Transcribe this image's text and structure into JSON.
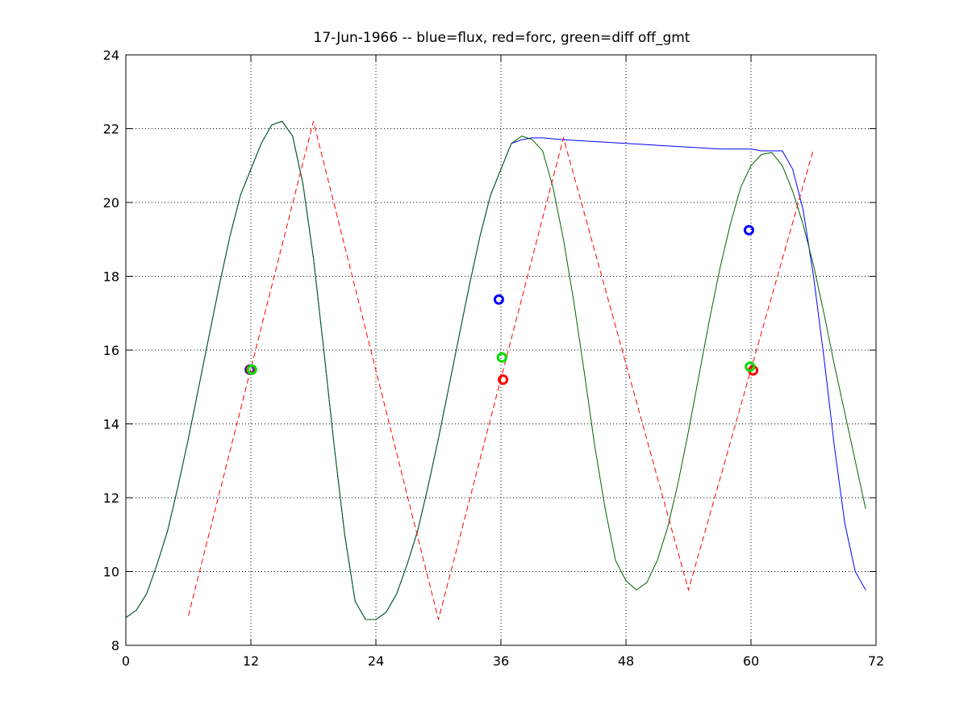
{
  "chart_data": {
    "type": "line",
    "title": "17-Jun-1966 -- blue=flux, red=forc, green=diff off_gmt",
    "xlabel": "",
    "ylabel": "",
    "xlim": [
      0,
      72
    ],
    "ylim": [
      8,
      24
    ],
    "xticks": [
      0,
      12,
      24,
      36,
      48,
      60,
      72
    ],
    "yticks": [
      8,
      10,
      12,
      14,
      16,
      18,
      20,
      22,
      24
    ],
    "grid": true,
    "legend": "none",
    "series": [
      {
        "color": "#0000ff",
        "style": "solid",
        "x": [
          0,
          1,
          2,
          3,
          4,
          5,
          6,
          7,
          8,
          9,
          10,
          11,
          12,
          13,
          14,
          15,
          16,
          17,
          18,
          19,
          20,
          21,
          22,
          23,
          24,
          25,
          26,
          27,
          28,
          29,
          30,
          31,
          32,
          33,
          34,
          35,
          36,
          37,
          38,
          39,
          40,
          42,
          45,
          48,
          51,
          54,
          57,
          60,
          61,
          62,
          63,
          64,
          65,
          66,
          67,
          68,
          69,
          70,
          71
        ],
        "y": [
          8.75,
          8.95,
          9.4,
          10.2,
          11.1,
          12.3,
          13.6,
          15.0,
          16.4,
          17.8,
          19.1,
          20.2,
          20.9,
          21.6,
          22.1,
          22.2,
          21.8,
          20.5,
          18.5,
          16.0,
          13.4,
          11.0,
          9.2,
          8.7,
          8.7,
          8.9,
          9.4,
          10.2,
          11.1,
          12.3,
          13.6,
          15.0,
          16.4,
          17.8,
          19.1,
          20.2,
          20.9,
          21.6,
          21.7,
          21.75,
          21.75,
          21.7,
          21.65,
          21.6,
          21.55,
          21.5,
          21.45,
          21.45,
          21.4,
          21.4,
          21.4,
          20.9,
          19.8,
          18.0,
          15.8,
          13.4,
          11.3,
          10.0,
          9.5
        ]
      },
      {
        "color": "#006400",
        "style": "solid",
        "x": [
          0,
          1,
          2,
          3,
          4,
          5,
          6,
          7,
          8,
          9,
          10,
          11,
          12,
          13,
          14,
          15,
          16,
          17,
          18,
          19,
          20,
          21,
          22,
          23,
          24,
          25,
          26,
          27,
          28,
          29,
          30,
          31,
          32,
          33,
          34,
          35,
          36,
          37,
          38,
          39,
          40,
          41,
          42,
          43,
          44,
          45,
          46,
          47,
          48,
          49,
          50,
          51,
          52,
          53,
          54,
          55,
          56,
          57,
          58,
          59,
          60,
          61,
          62,
          63,
          64,
          65,
          66,
          67,
          68,
          69,
          70,
          71
        ],
        "y": [
          8.75,
          8.95,
          9.4,
          10.2,
          11.1,
          12.3,
          13.6,
          15.0,
          16.4,
          17.8,
          19.1,
          20.2,
          20.9,
          21.6,
          22.1,
          22.2,
          21.8,
          20.5,
          18.5,
          16.0,
          13.4,
          11.0,
          9.2,
          8.7,
          8.7,
          8.9,
          9.4,
          10.2,
          11.1,
          12.3,
          13.6,
          15.0,
          16.4,
          17.8,
          19.1,
          20.2,
          20.9,
          21.6,
          21.8,
          21.7,
          21.4,
          20.4,
          19.0,
          17.3,
          15.4,
          13.4,
          11.7,
          10.3,
          9.75,
          9.5,
          9.7,
          10.3,
          11.2,
          12.4,
          13.8,
          15.3,
          16.8,
          18.2,
          19.4,
          20.4,
          21.0,
          21.3,
          21.35,
          21.0,
          20.3,
          19.4,
          18.3,
          17.0,
          15.6,
          14.3,
          13.0,
          11.7
        ]
      },
      {
        "color": "#ff0000",
        "style": "dashed",
        "x": [
          6,
          18,
          30,
          42,
          54,
          66
        ],
        "y": [
          8.8,
          22.2,
          8.7,
          21.75,
          9.5,
          21.45
        ]
      }
    ],
    "markers": [
      {
        "x": 11.9,
        "y": 15.47,
        "color": "#0000ff"
      },
      {
        "x": 12.0,
        "y": 15.47,
        "color": "#ff0000"
      },
      {
        "x": 12.1,
        "y": 15.47,
        "color": "#00dd00"
      },
      {
        "x": 35.8,
        "y": 17.37,
        "color": "#0000ff"
      },
      {
        "x": 36.2,
        "y": 15.2,
        "color": "#ff0000"
      },
      {
        "x": 36.1,
        "y": 15.8,
        "color": "#00dd00"
      },
      {
        "x": 59.8,
        "y": 19.25,
        "color": "#0000ff"
      },
      {
        "x": 60.2,
        "y": 15.45,
        "color": "#ff0000"
      },
      {
        "x": 59.9,
        "y": 15.55,
        "color": "#00dd00"
      }
    ]
  }
}
